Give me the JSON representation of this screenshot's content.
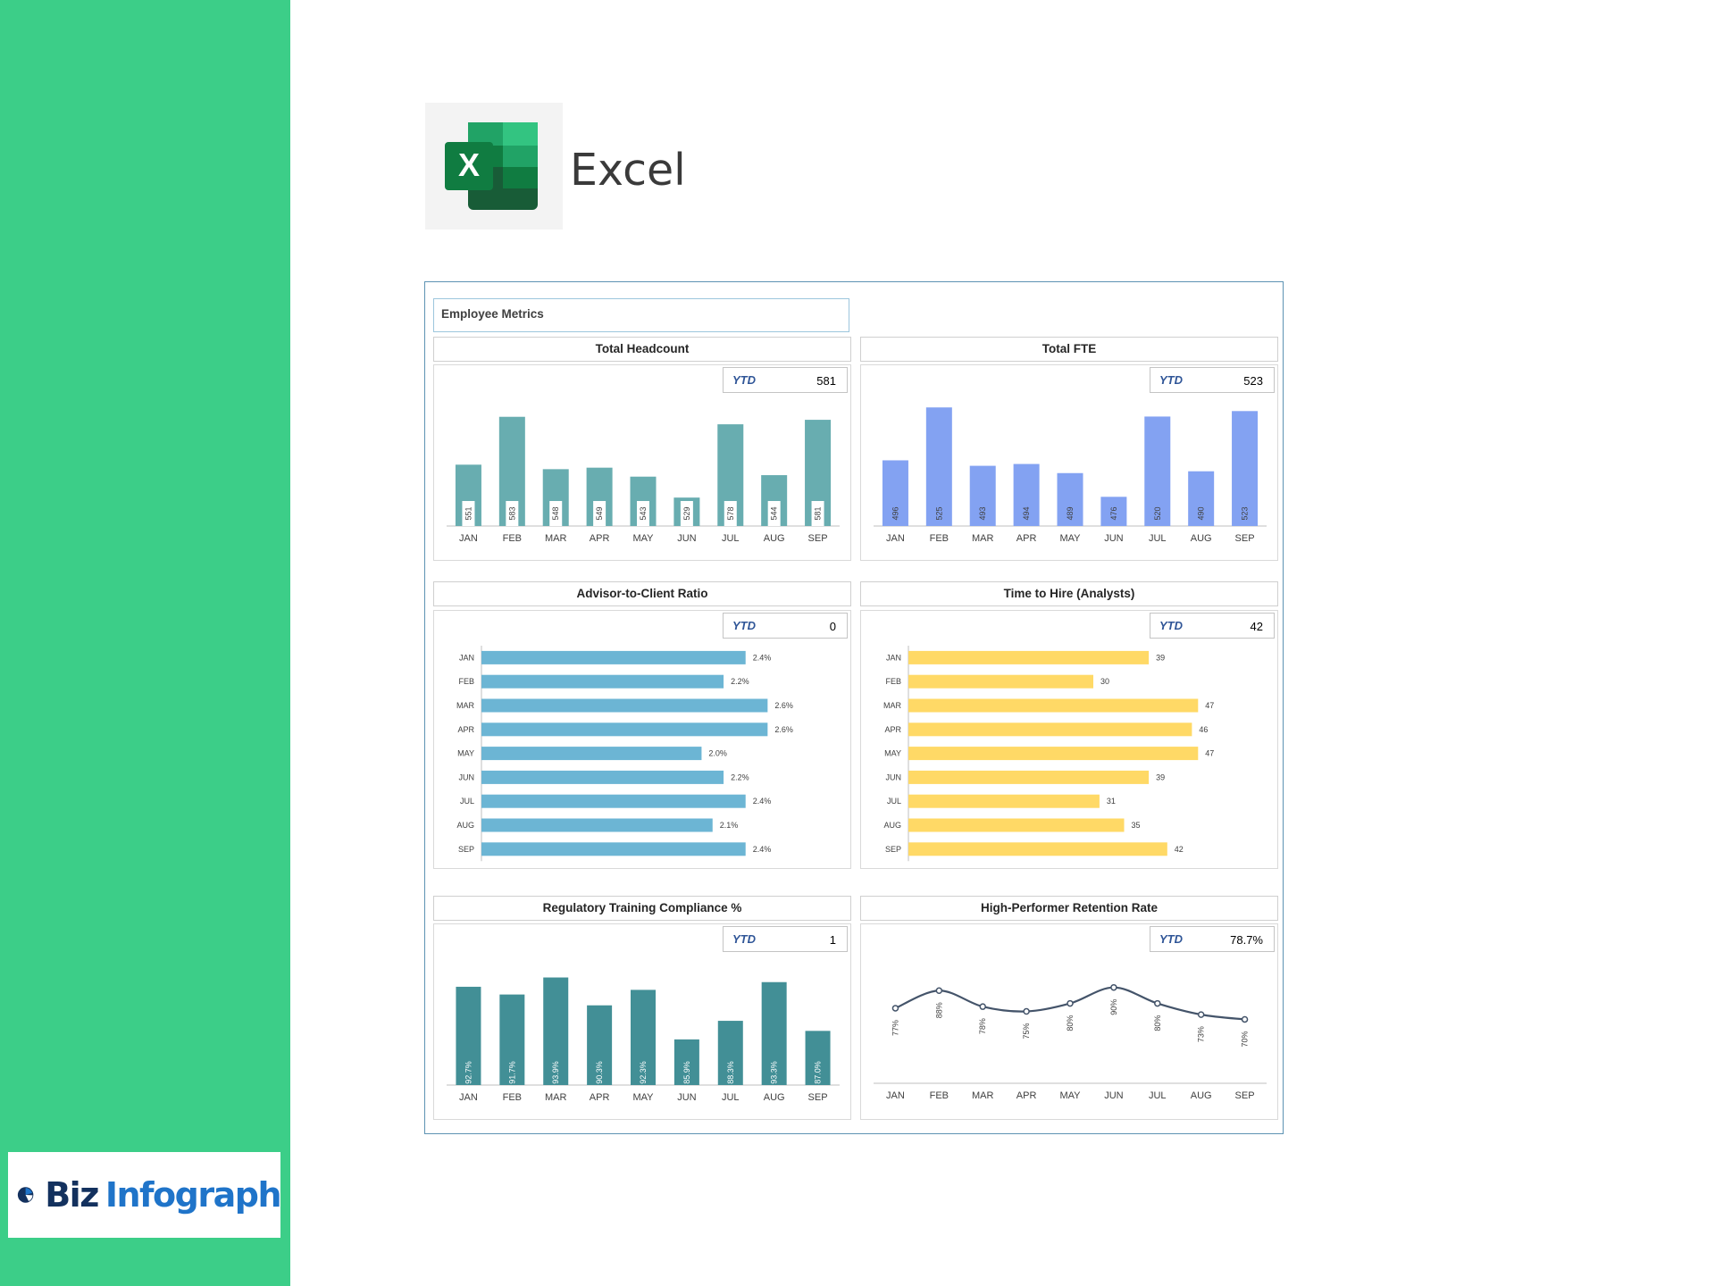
{
  "app": {
    "title": "Excel"
  },
  "brand": {
    "biz": "Biz",
    "infograph": "Infograph",
    "excel_icon_letter": "X"
  },
  "colors": {
    "sidebar": "#3cce88",
    "headcount": "#68adb0",
    "fte": "#83a2f2",
    "ratio": "#6cb5d4",
    "hire": "#ffd966",
    "compliance": "#428f96",
    "retention": "#44546a",
    "ytd_label": "#2f5597"
  },
  "dashboard": {
    "title": "Employee Metrics"
  },
  "charts": {
    "headcount": {
      "title": "Total Headcount",
      "ytd_label": "YTD",
      "ytd_value": "581"
    },
    "fte": {
      "title": "Total FTE",
      "ytd_label": "YTD",
      "ytd_value": "523"
    },
    "ratio": {
      "title": "Advisor-to-Client Ratio",
      "ytd_label": "YTD",
      "ytd_value": "0"
    },
    "hire": {
      "title": "Time to Hire (Analysts)",
      "ytd_label": "YTD",
      "ytd_value": "42"
    },
    "compliance": {
      "title": "Regulatory Training Compliance %",
      "ytd_label": "YTD",
      "ytd_value": "1"
    },
    "retention": {
      "title": "High-Performer Retention Rate",
      "ytd_label": "YTD",
      "ytd_value": "78.7%"
    }
  },
  "chart_data": [
    {
      "id": "headcount",
      "type": "bar",
      "title": "Total Headcount",
      "categories": [
        "JAN",
        "FEB",
        "MAR",
        "APR",
        "MAY",
        "JUN",
        "JUL",
        "AUG",
        "SEP"
      ],
      "values": [
        551,
        583,
        548,
        549,
        543,
        529,
        578,
        544,
        581
      ],
      "ylim": [
        510,
        590
      ]
    },
    {
      "id": "fte",
      "type": "bar",
      "title": "Total FTE",
      "categories": [
        "JAN",
        "FEB",
        "MAR",
        "APR",
        "MAY",
        "JUN",
        "JUL",
        "AUG",
        "SEP"
      ],
      "values": [
        496,
        525,
        493,
        494,
        489,
        476,
        520,
        490,
        523
      ],
      "ylim": [
        460,
        530
      ]
    },
    {
      "id": "ratio",
      "type": "bar",
      "orientation": "horizontal",
      "title": "Advisor-to-Client Ratio",
      "categories": [
        "JAN",
        "FEB",
        "MAR",
        "APR",
        "MAY",
        "JUN",
        "JUL",
        "AUG",
        "SEP"
      ],
      "values": [
        2.4,
        2.2,
        2.6,
        2.6,
        2.0,
        2.2,
        2.4,
        2.1,
        2.4
      ],
      "labels": [
        "2.4%",
        "2.2%",
        "2.6%",
        "2.6%",
        "2.0%",
        "2.2%",
        "2.4%",
        "2.1%",
        "2.4%"
      ],
      "xlim": [
        0,
        2.8
      ]
    },
    {
      "id": "hire",
      "type": "bar",
      "orientation": "horizontal",
      "title": "Time to Hire (Analysts)",
      "categories": [
        "JAN",
        "FEB",
        "MAR",
        "APR",
        "MAY",
        "JUN",
        "JUL",
        "AUG",
        "SEP"
      ],
      "values": [
        39,
        30,
        47,
        46,
        47,
        39,
        31,
        35,
        42
      ],
      "labels": [
        "39",
        "30",
        "47",
        "46",
        "47",
        "39",
        "31",
        "35",
        "42"
      ],
      "xlim": [
        0,
        50
      ]
    },
    {
      "id": "compliance",
      "type": "bar",
      "title": "Regulatory Training Compliance %",
      "categories": [
        "JAN",
        "FEB",
        "MAR",
        "APR",
        "MAY",
        "JUN",
        "JUL",
        "AUG",
        "SEP"
      ],
      "values": [
        92.7,
        91.7,
        93.9,
        90.3,
        92.3,
        85.9,
        88.3,
        93.3,
        87.0
      ],
      "labels": [
        "92.7%",
        "91.7%",
        "93.9%",
        "90.3%",
        "92.3%",
        "85.9%",
        "88.3%",
        "93.3%",
        "87.0%"
      ],
      "ylim": [
        80,
        95
      ]
    },
    {
      "id": "retention",
      "type": "line",
      "title": "High-Performer Retention Rate",
      "categories": [
        "JAN",
        "FEB",
        "MAR",
        "APR",
        "MAY",
        "JUN",
        "JUL",
        "AUG",
        "SEP"
      ],
      "values": [
        77,
        88,
        78,
        75,
        80,
        90,
        80,
        73,
        70
      ],
      "labels": [
        "77%",
        "88%",
        "78%",
        "75%",
        "80%",
        "90%",
        "80%",
        "73%",
        "70%"
      ],
      "ylim": [
        30,
        115
      ]
    }
  ]
}
